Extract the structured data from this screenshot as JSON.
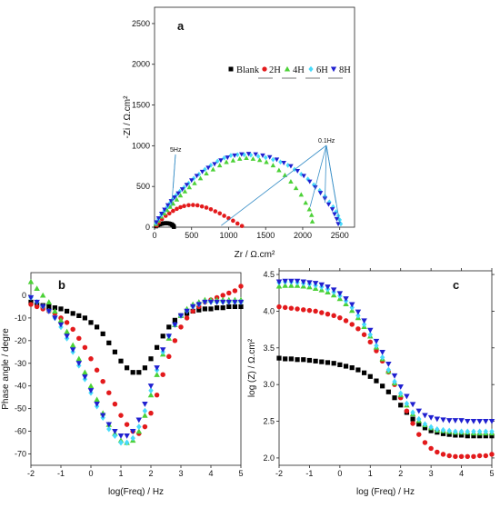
{
  "charts": [
    {
      "panel": "a",
      "type": "scatter",
      "xlabel": "Zr / Ω.cm²",
      "ylabel": "-Zi / Ω.cm²",
      "xlim": [
        0,
        2700
      ],
      "ylim": [
        0,
        2700
      ],
      "xticks": [
        0,
        500,
        1000,
        1500,
        2000,
        2500
      ],
      "yticks": [
        0,
        500,
        1000,
        1500,
        2000,
        2500
      ],
      "tick_labels_x": [
        "0",
        "500",
        "1000",
        "1500",
        "2000",
        "2500"
      ],
      "tick_labels_y": [
        "0",
        "500",
        "1000",
        "1500",
        "2000",
        "2500"
      ],
      "legend": [
        "Blank",
        "2H",
        "4H",
        "6H",
        "8H"
      ],
      "legend_position": "top-right",
      "annotations": [
        {
          "text": "5Hz",
          "target_x": [
            230,
            250
          ],
          "target_y": [
            250,
            480
          ]
        },
        {
          "text": "0.1Hz",
          "target_x": [
            900,
            2100,
            2300,
            2450,
            2500
          ],
          "target_y": [
            20,
            250,
            300,
            300,
            50
          ]
        }
      ],
      "series": [
        {
          "name": "Blank",
          "x": [
            20,
            30,
            50,
            70,
            90,
            110,
            130,
            150,
            170,
            190,
            210,
            230,
            240,
            250,
            258,
            262
          ],
          "y": [
            10,
            20,
            28,
            35,
            40,
            45,
            48,
            50,
            49,
            47,
            42,
            35,
            28,
            20,
            10,
            3
          ]
        },
        {
          "name": "2H",
          "x": [
            30,
            60,
            100,
            150,
            200,
            250,
            300,
            350,
            400,
            460,
            520,
            580,
            640,
            700,
            760,
            820,
            880,
            940,
            1000,
            1060,
            1120,
            1180
          ],
          "y": [
            20,
            60,
            100,
            140,
            170,
            200,
            225,
            245,
            260,
            270,
            272,
            268,
            255,
            240,
            220,
            195,
            170,
            140,
            110,
            80,
            45,
            15
          ]
        },
        {
          "name": "4H",
          "x": [
            20,
            50,
            90,
            130,
            170,
            210,
            250,
            300,
            350,
            410,
            470,
            540,
            620,
            700,
            790,
            880,
            970,
            1060,
            1150,
            1240,
            1330,
            1420,
            1510,
            1600,
            1680,
            1760,
            1840,
            1910,
            1980,
            2040,
            2090,
            2120,
            2130
          ],
          "y": [
            40,
            80,
            130,
            170,
            210,
            250,
            290,
            340,
            390,
            440,
            490,
            540,
            600,
            660,
            710,
            760,
            800,
            820,
            840,
            850,
            840,
            825,
            800,
            760,
            700,
            640,
            560,
            480,
            400,
            300,
            220,
            150,
            70
          ]
        },
        {
          "name": "6H",
          "x": [
            20,
            50,
            90,
            130,
            170,
            210,
            250,
            290,
            340,
            400,
            460,
            530,
            600,
            680,
            760,
            850,
            940,
            1030,
            1120,
            1210,
            1300,
            1400,
            1500,
            1600,
            1700,
            1800,
            1890,
            1980,
            2070,
            2150,
            2230,
            2300,
            2360,
            2410,
            2450,
            2480,
            2500,
            2515
          ],
          "y": [
            50,
            100,
            150,
            200,
            250,
            300,
            350,
            390,
            440,
            490,
            540,
            600,
            650,
            710,
            760,
            810,
            850,
            880,
            890,
            890,
            885,
            870,
            855,
            830,
            800,
            760,
            710,
            650,
            590,
            520,
            450,
            380,
            310,
            250,
            190,
            140,
            90,
            40
          ]
        },
        {
          "name": "8H",
          "x": [
            25,
            55,
            95,
            135,
            180,
            225,
            270,
            320,
            375,
            435,
            500,
            570,
            645,
            725,
            810,
            895,
            985,
            1080,
            1175,
            1270,
            1365,
            1460,
            1555,
            1650,
            1745,
            1840,
            1930,
            2015,
            2095,
            2170,
            2240,
            2300,
            2350,
            2400,
            2430,
            2460,
            2480
          ],
          "y": [
            60,
            110,
            165,
            215,
            270,
            320,
            365,
            415,
            465,
            520,
            575,
            630,
            680,
            730,
            775,
            820,
            855,
            880,
            895,
            900,
            895,
            880,
            860,
            830,
            790,
            750,
            690,
            630,
            560,
            490,
            420,
            350,
            280,
            220,
            160,
            100,
            40
          ]
        }
      ]
    },
    {
      "panel": "b",
      "type": "scatter",
      "xlabel": "log(Freq) / Hz",
      "ylabel": "Phase angle / degre",
      "xlim": [
        -2,
        5
      ],
      "ylim": [
        -75,
        10
      ],
      "xticks": [
        -2,
        -1,
        0,
        1,
        2,
        3,
        4,
        5
      ],
      "yticks": [
        -70,
        -60,
        -50,
        -40,
        -30,
        -20,
        -10,
        0
      ],
      "tick_labels_x": [
        "-2",
        "-1",
        "0",
        "1",
        "2",
        "3",
        "4",
        "5"
      ],
      "tick_labels_y": [
        "-70",
        "-60",
        "-50",
        "-40",
        "-30",
        "-20",
        "-10",
        "0"
      ],
      "x": [
        -2.0,
        -1.8,
        -1.6,
        -1.4,
        -1.2,
        -1.0,
        -0.8,
        -0.6,
        -0.4,
        -0.2,
        0.0,
        0.2,
        0.4,
        0.6,
        0.8,
        1.0,
        1.2,
        1.4,
        1.6,
        1.8,
        2.0,
        2.2,
        2.4,
        2.6,
        2.8,
        3.0,
        3.2,
        3.4,
        3.6,
        3.8,
        4.0,
        4.2,
        4.4,
        4.6,
        4.8,
        5.0
      ],
      "series": [
        {
          "name": "Blank",
          "y": [
            -3,
            -4,
            -4.5,
            -5,
            -5.5,
            -6,
            -7,
            -8,
            -9,
            -10,
            -12,
            -14,
            -17,
            -21,
            -25,
            -29,
            -32,
            -34,
            -34,
            -32,
            -28,
            -23,
            -18,
            -14,
            -11,
            -9,
            -8,
            -7,
            -6.5,
            -6,
            -6,
            -5.5,
            -5.5,
            -5,
            -5,
            -5
          ]
        },
        {
          "name": "2H",
          "y": [
            -4,
            -5,
            -6,
            -7,
            -8,
            -10,
            -12,
            -15,
            -19,
            -23,
            -28,
            -33,
            -38,
            -43,
            -48,
            -53,
            -57,
            -60,
            -61,
            -58,
            -52,
            -44,
            -35,
            -27,
            -20,
            -14,
            -10,
            -7,
            -5,
            -3,
            -2,
            -1,
            0,
            1,
            2,
            4
          ]
        },
        {
          "name": "4H",
          "y": [
            6,
            3,
            0,
            -3,
            -7,
            -11,
            -16,
            -22,
            -28,
            -34,
            -40,
            -46,
            -52,
            -57,
            -61,
            -64,
            -65,
            -64,
            -60,
            -53,
            -44,
            -35,
            -26,
            -19,
            -13,
            -9,
            -6,
            -4,
            -3,
            -2,
            -2,
            -2,
            -2,
            -2,
            -2,
            -2
          ]
        },
        {
          "name": "6H",
          "y": [
            -1,
            -3,
            -5,
            -7,
            -10,
            -14,
            -19,
            -25,
            -31,
            -37,
            -43,
            -49,
            -54,
            -59,
            -62,
            -65,
            -65,
            -63,
            -58,
            -51,
            -42,
            -33,
            -25,
            -18,
            -13,
            -9,
            -7,
            -5,
            -4,
            -3,
            -3,
            -3,
            -3,
            -3,
            -3,
            -3
          ]
        },
        {
          "name": "8H",
          "y": [
            -1,
            -3,
            -5,
            -7,
            -10,
            -13,
            -18,
            -24,
            -30,
            -36,
            -42,
            -48,
            -53,
            -57,
            -60,
            -62,
            -62,
            -60,
            -55,
            -48,
            -40,
            -32,
            -24,
            -18,
            -13,
            -9,
            -7,
            -5,
            -4,
            -3,
            -3,
            -3,
            -3,
            -3,
            -3,
            -3
          ]
        }
      ]
    },
    {
      "panel": "c",
      "type": "scatter",
      "xlabel": "log (Freq) / Hz",
      "ylabel": "log (Z) / Ω.cm²",
      "xlim": [
        -2,
        5
      ],
      "ylim": [
        1.9,
        4.55
      ],
      "xticks": [
        -2,
        -1,
        0,
        1,
        2,
        3,
        4,
        5
      ],
      "yticks": [
        2.0,
        2.5,
        3.0,
        3.5,
        4.0,
        4.5
      ],
      "tick_labels_x": [
        "-2",
        "-1",
        "0",
        "1",
        "2",
        "3",
        "4",
        "5"
      ],
      "tick_labels_y": [
        "2.0",
        "2.5",
        "3.0",
        "3.5",
        "4.0",
        "4.5"
      ],
      "x": [
        -2.0,
        -1.8,
        -1.6,
        -1.4,
        -1.2,
        -1.0,
        -0.8,
        -0.6,
        -0.4,
        -0.2,
        0.0,
        0.2,
        0.4,
        0.6,
        0.8,
        1.0,
        1.2,
        1.4,
        1.6,
        1.8,
        2.0,
        2.2,
        2.4,
        2.6,
        2.8,
        3.0,
        3.2,
        3.4,
        3.6,
        3.8,
        4.0,
        4.2,
        4.4,
        4.6,
        4.8,
        5.0
      ],
      "series": [
        {
          "name": "Blank",
          "y": [
            3.36,
            3.35,
            3.35,
            3.34,
            3.34,
            3.33,
            3.32,
            3.31,
            3.3,
            3.29,
            3.27,
            3.25,
            3.23,
            3.2,
            3.16,
            3.11,
            3.05,
            2.98,
            2.9,
            2.82,
            2.72,
            2.62,
            2.53,
            2.46,
            2.41,
            2.37,
            2.35,
            2.33,
            2.32,
            2.31,
            2.31,
            2.3,
            2.3,
            2.3,
            2.3,
            2.3
          ]
        },
        {
          "name": "2H",
          "y": [
            4.06,
            4.05,
            4.04,
            4.03,
            4.02,
            4.01,
            4.0,
            3.98,
            3.96,
            3.94,
            3.91,
            3.87,
            3.82,
            3.76,
            3.68,
            3.58,
            3.46,
            3.32,
            3.17,
            3.0,
            2.82,
            2.64,
            2.47,
            2.32,
            2.21,
            2.13,
            2.08,
            2.05,
            2.03,
            2.02,
            2.02,
            2.02,
            2.02,
            2.03,
            2.03,
            2.05
          ]
        },
        {
          "name": "4H",
          "y": [
            4.34,
            4.35,
            4.35,
            4.35,
            4.34,
            4.33,
            4.31,
            4.29,
            4.26,
            4.22,
            4.17,
            4.1,
            4.01,
            3.91,
            3.79,
            3.66,
            3.51,
            3.35,
            3.18,
            3.02,
            2.86,
            2.72,
            2.6,
            2.51,
            2.45,
            2.41,
            2.38,
            2.37,
            2.36,
            2.35,
            2.35,
            2.35,
            2.34,
            2.34,
            2.34,
            2.34
          ]
        },
        {
          "name": "6H",
          "y": [
            4.39,
            4.4,
            4.4,
            4.39,
            4.38,
            4.37,
            4.35,
            4.33,
            4.3,
            4.26,
            4.21,
            4.14,
            4.05,
            3.94,
            3.82,
            3.68,
            3.53,
            3.37,
            3.2,
            3.04,
            2.88,
            2.74,
            2.62,
            2.53,
            2.46,
            2.42,
            2.39,
            2.38,
            2.37,
            2.36,
            2.36,
            2.36,
            2.36,
            2.36,
            2.36,
            2.36
          ]
        },
        {
          "name": "8H",
          "y": [
            4.4,
            4.41,
            4.41,
            4.41,
            4.4,
            4.39,
            4.38,
            4.36,
            4.33,
            4.29,
            4.24,
            4.17,
            4.09,
            3.99,
            3.87,
            3.74,
            3.59,
            3.44,
            3.28,
            3.12,
            2.97,
            2.84,
            2.73,
            2.64,
            2.58,
            2.55,
            2.53,
            2.52,
            2.51,
            2.51,
            2.51,
            2.5,
            2.5,
            2.5,
            2.5,
            2.5
          ]
        }
      ]
    }
  ],
  "style": {
    "series": [
      {
        "name": "Blank",
        "color": "#000000",
        "marker": "square"
      },
      {
        "name": "2H",
        "color": "#e31a1c",
        "marker": "circle"
      },
      {
        "name": "4H",
        "color": "#4cd137",
        "marker": "triangle-up"
      },
      {
        "name": "6H",
        "color": "#48dbfb",
        "marker": "diamond"
      },
      {
        "name": "8H",
        "color": "#2020d0",
        "marker": "triangle-down"
      }
    ],
    "annotation_line_color": "#3a8fc7"
  }
}
